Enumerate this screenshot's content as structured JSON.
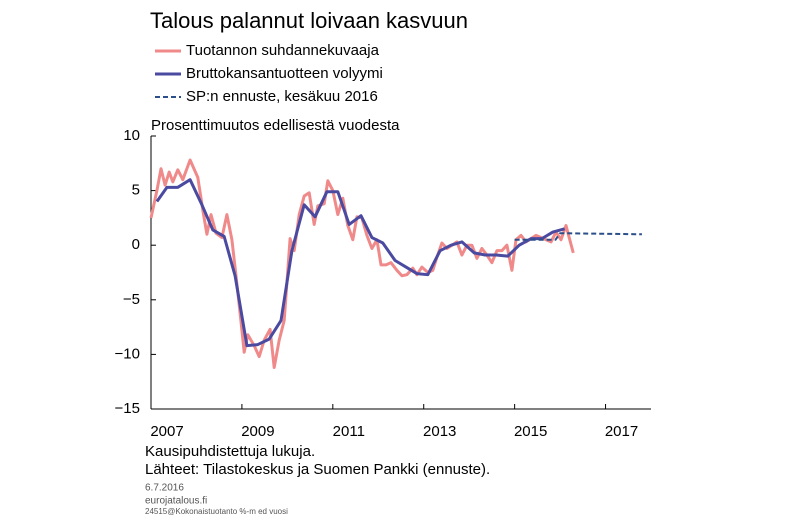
{
  "chart_data": {
    "type": "line",
    "title": "Talous palannut loivaan kasvuun",
    "subtitle": "Prosenttimuutos edellisestä vuodesta",
    "notes": [
      "Kausipuhdistettuja lukuja.",
      "Lähteet: Tilastokeskus ja Suomen Pankki (ennuste)."
    ],
    "footer": [
      "6.7.2016",
      "eurojatalous.fi",
      "24515@Kokonaistuotanto %-m ed vuosi"
    ],
    "xlim": [
      2007,
      2018
    ],
    "xticks": [
      2007,
      2009,
      2011,
      2013,
      2015,
      2017
    ],
    "ylim": [
      -15,
      10
    ],
    "yticks": [
      10,
      5,
      0,
      {
        "value": -5,
        "label": "−5"
      },
      {
        "value": -10,
        "label": "−10"
      },
      {
        "value": -15,
        "label": "−15"
      }
    ],
    "series": [
      {
        "name": "Tuotannon suhdannekuvaaja",
        "color": "#f08a8a",
        "width": 3,
        "dash": false,
        "x": [
          2007.0,
          2007.13,
          2007.22,
          2007.31,
          2007.4,
          2007.48,
          2007.59,
          2007.7,
          2007.86,
          2008.03,
          2008.14,
          2008.23,
          2008.32,
          2008.43,
          2008.56,
          2008.67,
          2008.78,
          2008.87,
          2008.98,
          2009.05,
          2009.13,
          2009.27,
          2009.38,
          2009.49,
          2009.62,
          2009.71,
          2009.82,
          2009.93,
          2010.06,
          2010.15,
          2010.26,
          2010.37,
          2010.48,
          2010.59,
          2010.67,
          2010.81,
          2010.89,
          2011.0,
          2011.11,
          2011.22,
          2011.33,
          2011.44,
          2011.53,
          2011.64,
          2011.75,
          2011.86,
          2011.97,
          2012.06,
          2012.17,
          2012.28,
          2012.41,
          2012.52,
          2012.63,
          2012.76,
          2012.85,
          2012.96,
          2013.09,
          2013.2,
          2013.29,
          2013.4,
          2013.51,
          2013.62,
          2013.73,
          2013.84,
          2013.95,
          2014.06,
          2014.17,
          2014.28,
          2014.39,
          2014.5,
          2014.61,
          2014.72,
          2014.83,
          2014.94,
          2015.03,
          2015.14,
          2015.25,
          2015.36,
          2015.47,
          2015.58,
          2015.69,
          2015.8,
          2015.91,
          2016.02,
          2016.13,
          2016.2,
          2016.29
        ],
        "values": [
          2.5,
          5,
          7,
          5.5,
          6.7,
          5.8,
          6.9,
          6,
          7.8,
          6.2,
          3.2,
          1,
          2.8,
          1.1,
          0.7,
          2.8,
          0.5,
          -2.8,
          -7,
          -9.8,
          -8.2,
          -9.2,
          -10.2,
          -8.7,
          -7.7,
          -11.2,
          -8.7,
          -6.9,
          0.6,
          -0.5,
          2.8,
          4.5,
          4.8,
          1.9,
          3.6,
          3.8,
          5.9,
          5,
          2.8,
          4.3,
          1.8,
          0.5,
          2.6,
          2.5,
          0.9,
          -0.3,
          0.5,
          -1.8,
          -1.8,
          -1.6,
          -2.3,
          -2.8,
          -2.7,
          -2.1,
          -2.7,
          -2,
          -2.5,
          -2.3,
          -1.1,
          0.2,
          -0.3,
          0,
          0.3,
          -0.9,
          0,
          0,
          -1.2,
          -0.3,
          -0.9,
          -1.6,
          -0.5,
          -0.5,
          0,
          -2.3,
          0.5,
          0.9,
          0.3,
          0.6,
          0.9,
          0.7,
          0.5,
          0.3,
          1.2,
          0.5,
          1.8,
          0.7,
          -0.7
        ]
      },
      {
        "name": "Bruttokansantuotteen volyymi",
        "color": "#4a4aa0",
        "width": 3,
        "dash": false,
        "x": [
          2007.13,
          2007.35,
          2007.59,
          2007.86,
          2008.12,
          2008.36,
          2008.61,
          2008.85,
          2009.11,
          2009.35,
          2009.6,
          2009.86,
          2010.1,
          2010.37,
          2010.61,
          2010.87,
          2011.11,
          2011.36,
          2011.62,
          2011.86,
          2012.1,
          2012.37,
          2012.61,
          2012.85,
          2013.09,
          2013.36,
          2013.6,
          2013.84,
          2014.11,
          2014.35,
          2014.59,
          2014.85,
          2015.1,
          2015.36,
          2015.6,
          2015.84,
          2016.1
        ],
        "values": [
          4,
          5.3,
          5.3,
          6,
          3.7,
          1.4,
          0.8,
          -2.8,
          -9.2,
          -9.1,
          -8.6,
          -6.9,
          -0.5,
          3.7,
          2.6,
          4.9,
          4.9,
          1.9,
          2.7,
          0.7,
          0.2,
          -1.4,
          -2,
          -2.6,
          -2.7,
          -0.5,
          0,
          0.3,
          -0.7,
          -0.9,
          -0.9,
          -1,
          0,
          0.6,
          0.6,
          1.2,
          1.5
        ]
      },
      {
        "name": "SP:n ennuste, kesäkuu 2016",
        "color": "#2a4f8a",
        "width": 2,
        "dash": true,
        "x": [
          2015.0,
          2015.9,
          2016.0,
          2017.8
        ],
        "values": [
          0.5,
          0.5,
          1.1,
          1.0
        ]
      }
    ]
  }
}
